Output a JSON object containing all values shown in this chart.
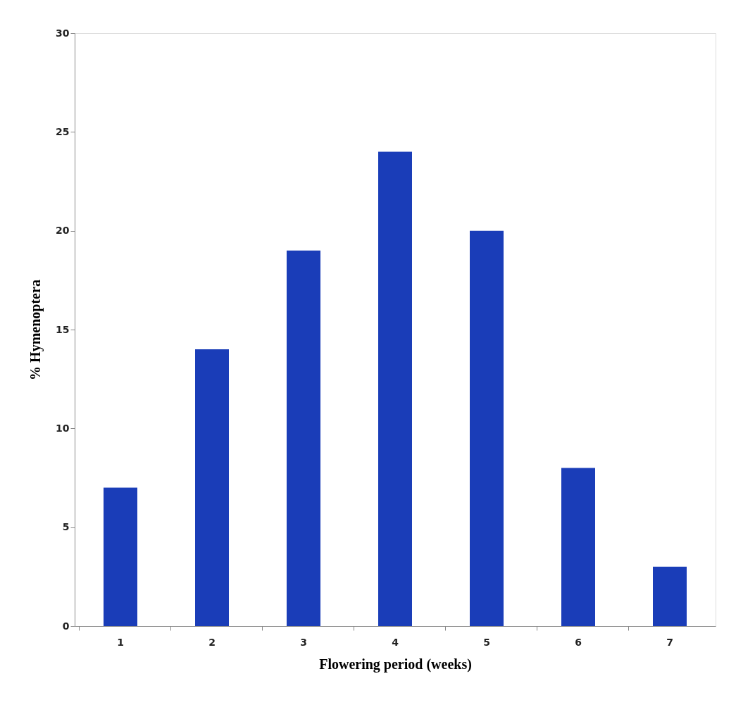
{
  "chart_data": {
    "type": "bar",
    "xlabel": "Flowering period (weeks)",
    "ylabel": "% Hymenoptera",
    "categories": [
      "1",
      "2",
      "3",
      "4",
      "5",
      "6",
      "7"
    ],
    "values": [
      7,
      14,
      19,
      24,
      20,
      8,
      3
    ],
    "color": "#1a3db8",
    "ylim": [
      0,
      30
    ],
    "yticks": [
      0,
      5,
      10,
      15,
      20,
      25,
      30
    ],
    "grid": false
  }
}
